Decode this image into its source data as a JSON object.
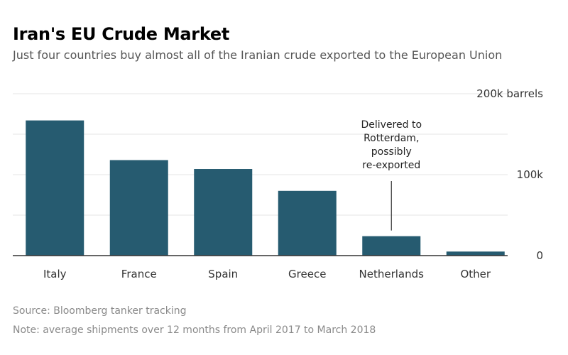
{
  "title": "Iran's EU Crude Market",
  "subtitle": "Just four countries buy almost all of the Iranian crude exported to the European Union",
  "source": "Source: Bloomberg tanker tracking",
  "note": "Note: average shipments over 12 months from April 2017 to March 2018",
  "colors": {
    "bar": "#265b70",
    "grid": "#e6e6e6",
    "axis": "#333333",
    "text": "#333333"
  },
  "chart_data": {
    "type": "bar",
    "categories": [
      "Italy",
      "France",
      "Spain",
      "Greece",
      "Netherlands",
      "Other"
    ],
    "values": [
      167000,
      118000,
      107000,
      80000,
      24000,
      5000
    ],
    "ylim": [
      0,
      200000
    ],
    "ytick_values": [
      0,
      100000,
      200000
    ],
    "ytick_labels": [
      "0",
      "100k",
      "200k barrels"
    ],
    "minor_gridlines": [
      50000,
      150000
    ],
    "annotation": {
      "category": "Netherlands",
      "lines": [
        "Delivered to",
        "Rotterdam,",
        "possibly",
        "re-exported"
      ]
    },
    "xlabel": "",
    "ylabel": ""
  }
}
